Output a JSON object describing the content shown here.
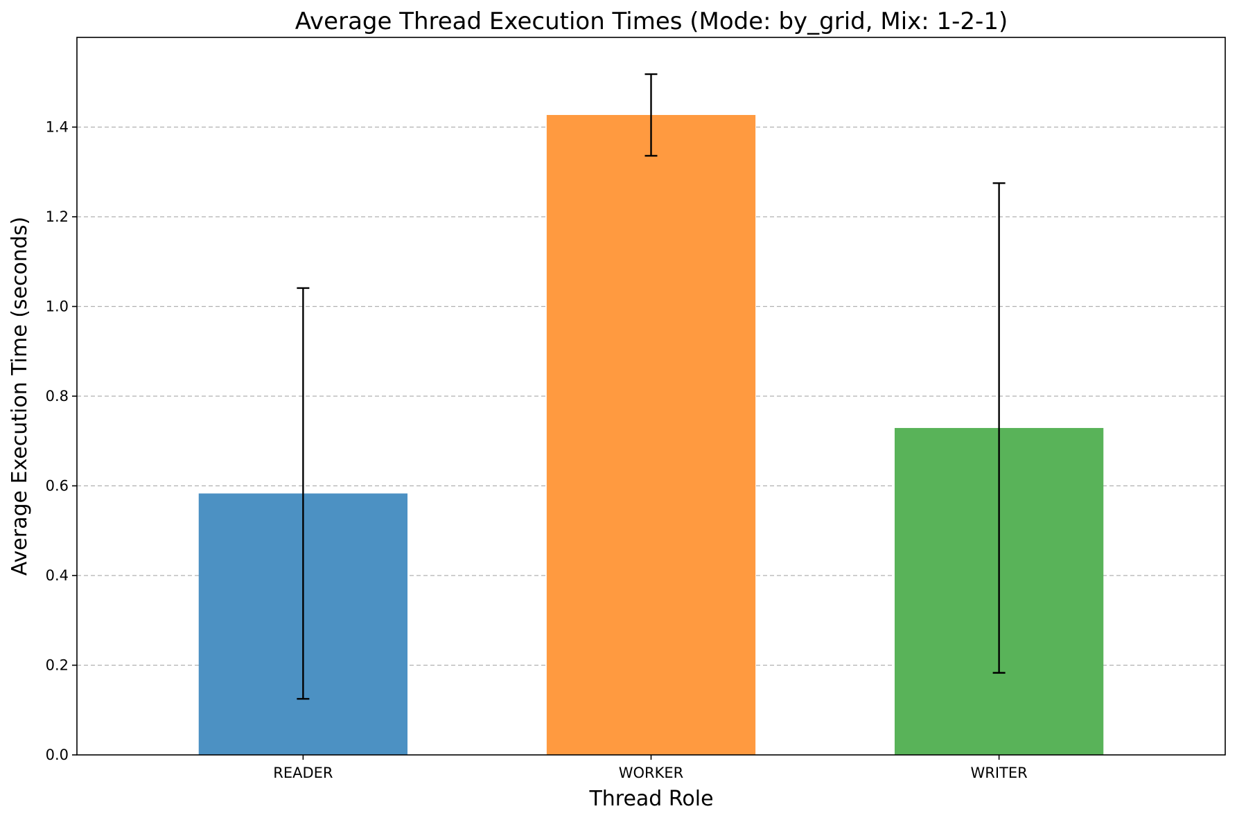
{
  "chart_data": {
    "type": "bar",
    "title": "Average Thread Execution Times (Mode: by_grid, Mix: 1-2-1)",
    "xlabel": "Thread Role",
    "ylabel": "Average Execution Time (seconds)",
    "categories": [
      "READER",
      "WORKER",
      "WRITER"
    ],
    "values": [
      0.583,
      1.427,
      0.729
    ],
    "errors": [
      0.458,
      0.091,
      0.546
    ],
    "colors": [
      "#4c91c3",
      "#ff9a40",
      "#59b359"
    ],
    "ylim": [
      0,
      1.6
    ],
    "yticks": [
      0.0,
      0.2,
      0.4,
      0.6,
      0.8,
      1.0,
      1.2,
      1.4
    ],
    "ytick_labels": [
      "0.0",
      "0.2",
      "0.4",
      "0.6",
      "0.8",
      "1.0",
      "1.2",
      "1.4"
    ],
    "grid": "y-dashed",
    "legend": "none"
  }
}
